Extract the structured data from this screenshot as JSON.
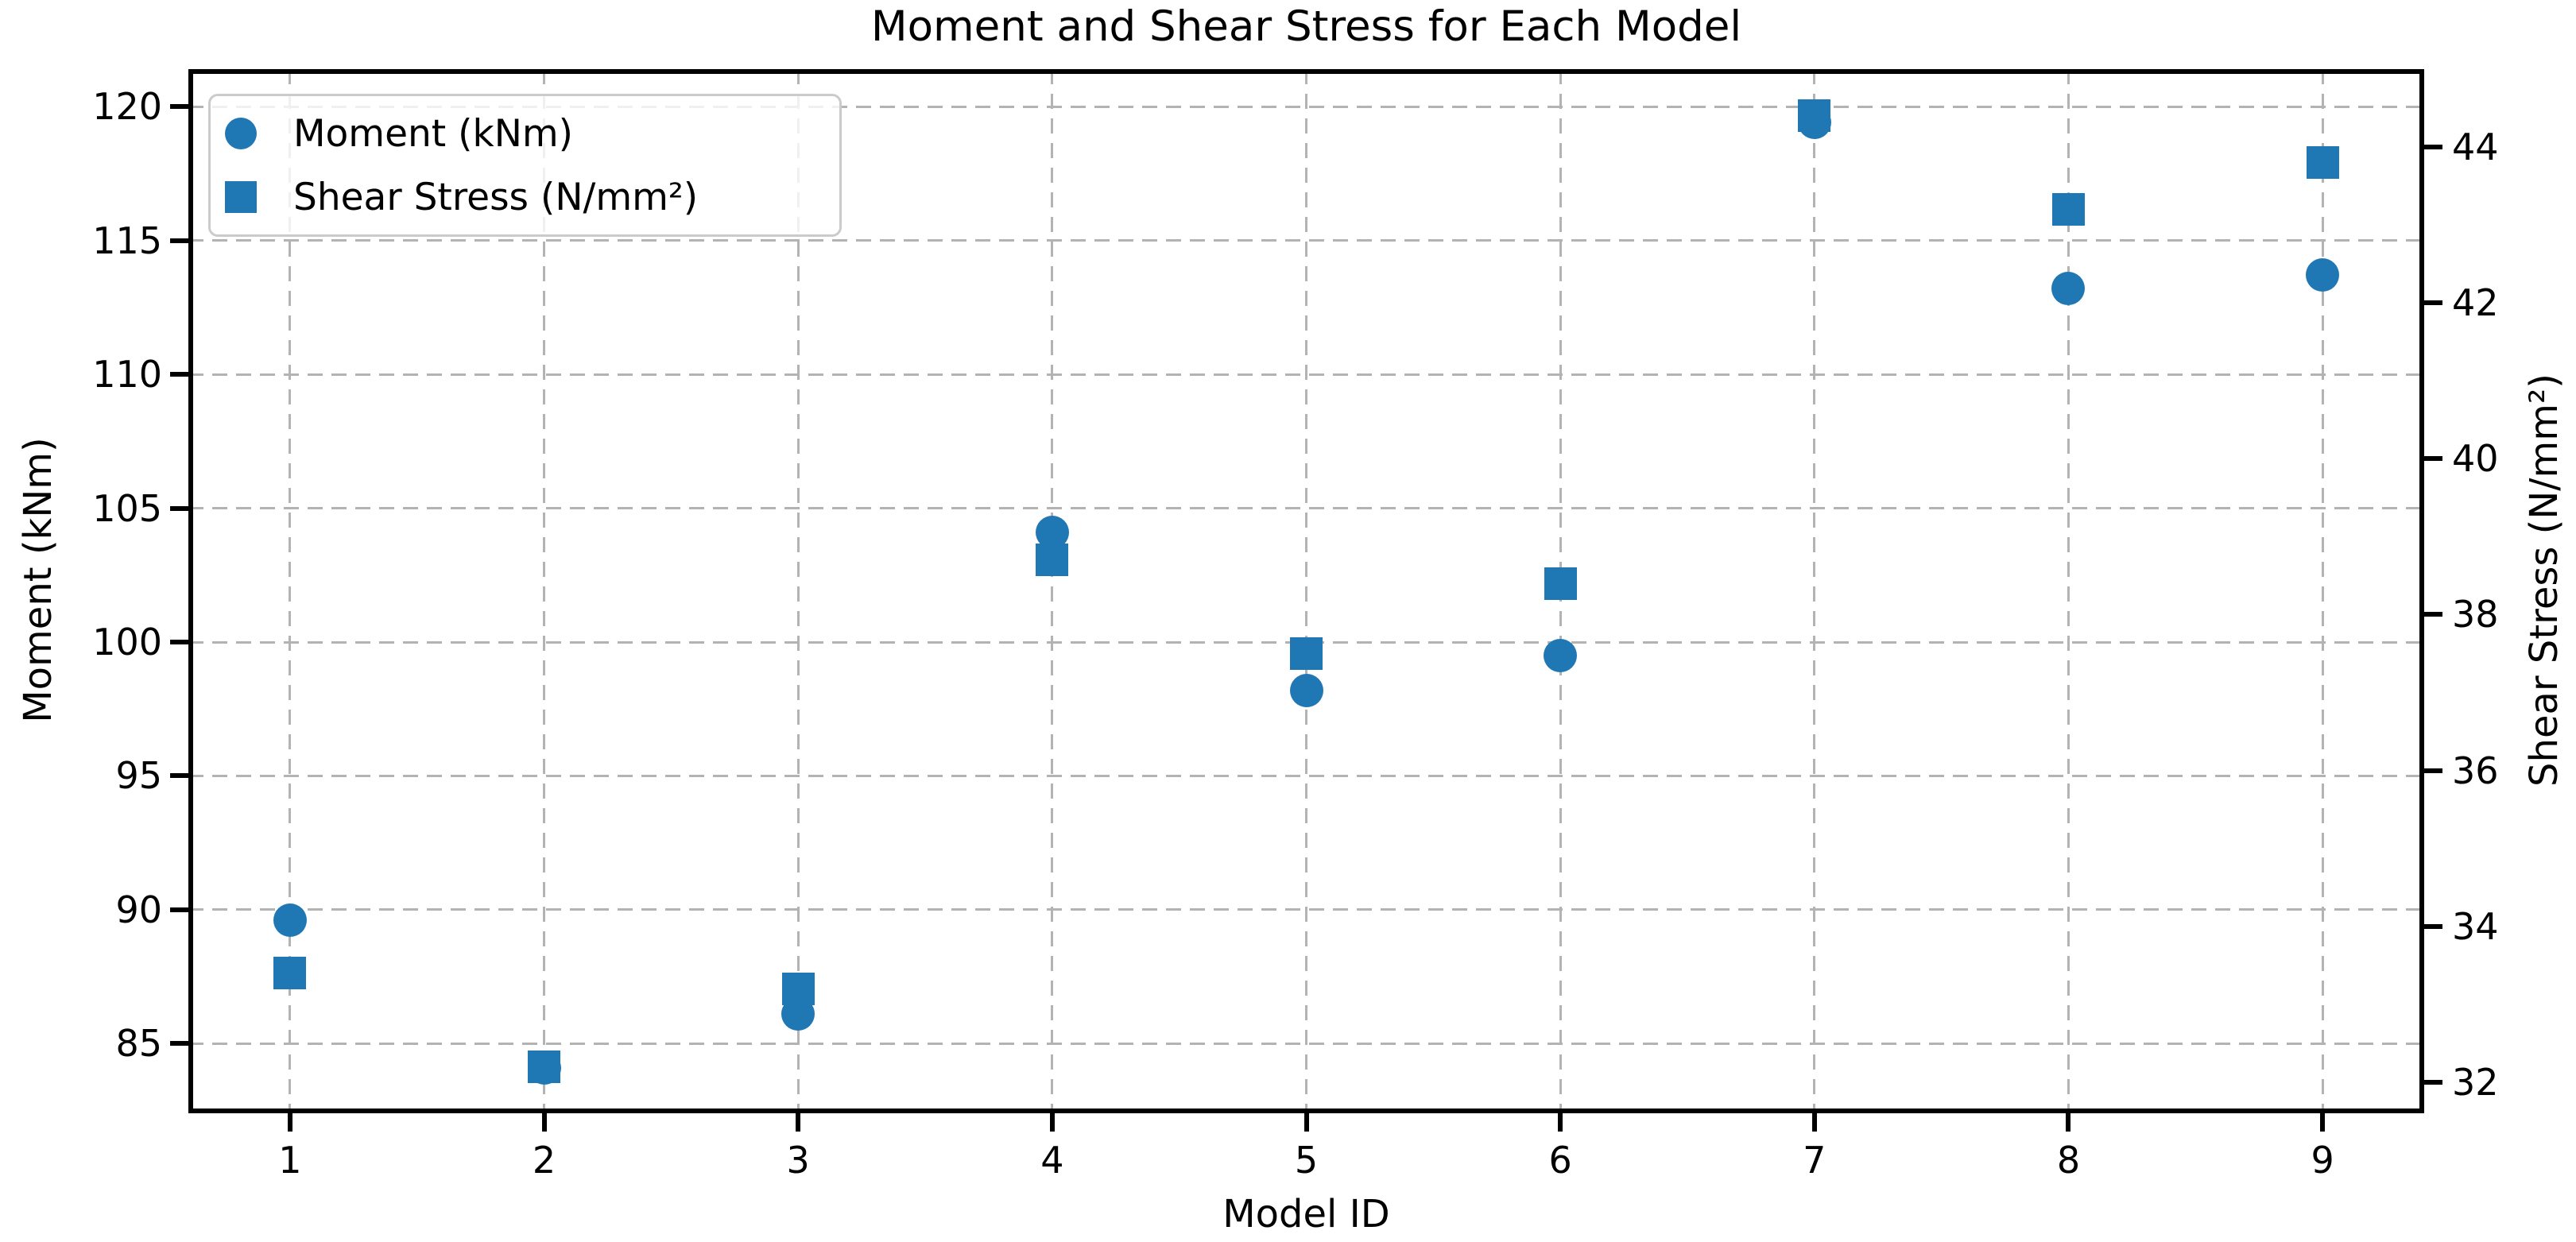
{
  "title": "Moment and Shear Stress for Each Model",
  "chart_data": {
    "type": "scatter",
    "title": "Moment and Shear Stress for Each Model",
    "xlabel": "Model ID",
    "ylabel_left": "Moment (kNm)",
    "ylabel_right": "Shear Stress (N/mm²)",
    "x": [
      1,
      2,
      3,
      4,
      5,
      6,
      7,
      8,
      9
    ],
    "x_ticks": [
      1,
      2,
      3,
      4,
      5,
      6,
      7,
      8,
      9
    ],
    "yleft_ticks": [
      85,
      90,
      95,
      100,
      105,
      110,
      115,
      120
    ],
    "yright_ticks": [
      32,
      34,
      36,
      38,
      40,
      42,
      44
    ],
    "xlim": [
      0.6,
      9.4
    ],
    "ylim_left": [
      82.4,
      121.4
    ],
    "ylim_right": [
      31.6,
      45.0
    ],
    "grid": true,
    "grid_style": "dashed",
    "legend_position": "upper left",
    "series": [
      {
        "name": "Moment (kNm)",
        "marker": "circle",
        "axis": "left",
        "values": [
          89.6,
          84.1,
          86.1,
          104.1,
          98.2,
          99.5,
          119.4,
          113.2,
          113.7
        ]
      },
      {
        "name": "Shear Stress (N/mm²)",
        "marker": "square",
        "axis": "right",
        "values": [
          33.4,
          32.2,
          33.2,
          38.7,
          37.5,
          38.4,
          44.4,
          43.2,
          43.8
        ]
      }
    ],
    "colors": {
      "marker": "#1f77b4",
      "grid": "#b3b3b3",
      "spine": "#000000",
      "legend_border": "#cbcbcb"
    },
    "note": "Moment circles for models 2 and 7 are occluded behind the shear-stress squares"
  },
  "legend": {
    "items": [
      {
        "label": "Moment (kNm)",
        "marker": "circle"
      },
      {
        "label": "Shear Stress (N/mm²)",
        "marker": "square"
      }
    ]
  }
}
